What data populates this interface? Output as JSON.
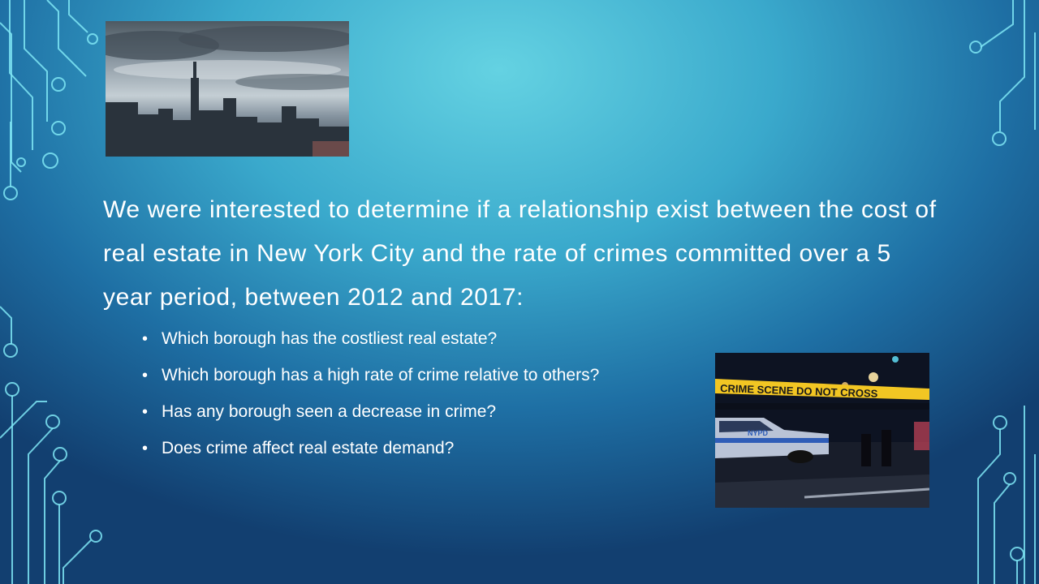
{
  "slide": {
    "intro_text": "We were interested to determine if a relationship exist between the cost of real estate in New York City and the rate of crimes committed over a 5 year period, between 2012 and 2017:",
    "bullets": [
      "Which borough has the costliest real estate?",
      "Which borough has a high rate of crime relative to others?",
      "Has any borough seen a decrease in crime?",
      "Does crime affect real estate demand?"
    ],
    "bullet_glyph": "•",
    "crime_photo_tape_text": "CRIME SCENE DO NOT CROSS",
    "crime_photo_car_text": "NYPD"
  },
  "colors": {
    "circuit": "#7fe6f5",
    "text": "#ffffff",
    "tape": "#f2c623"
  }
}
